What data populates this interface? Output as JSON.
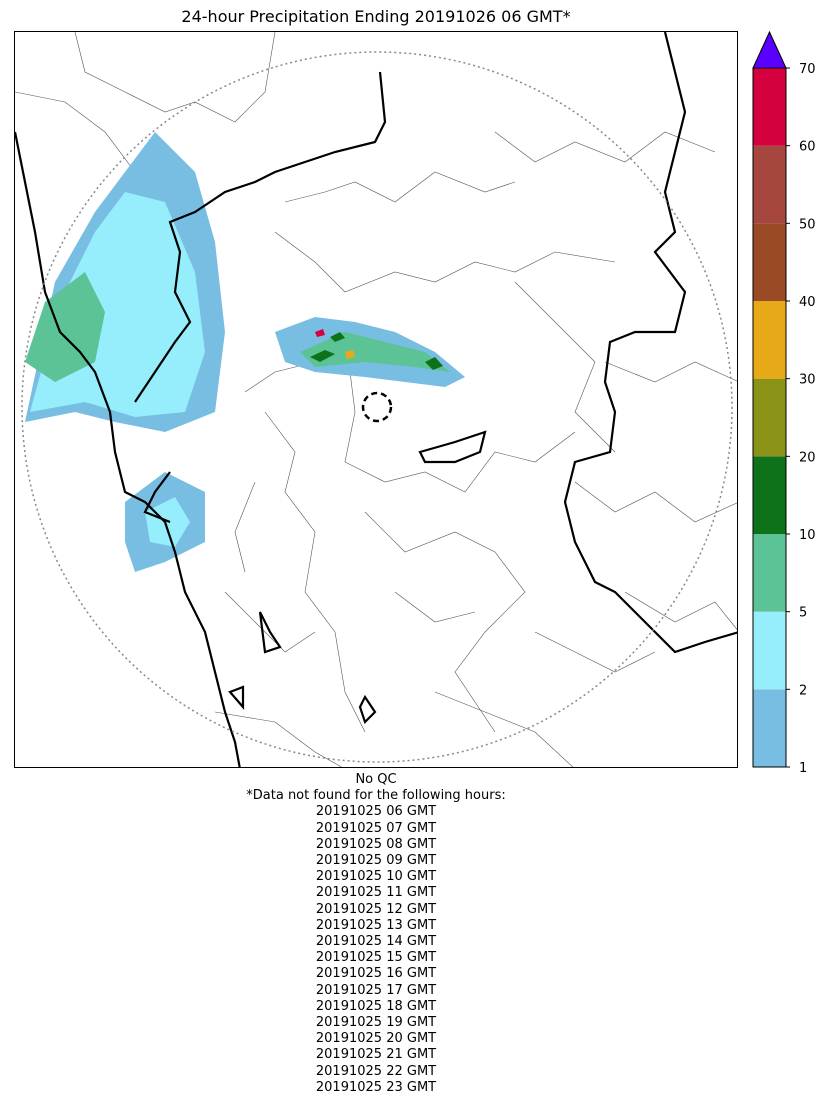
{
  "title": "24-hour Precipitation Ending 20191026 06 GMT*",
  "colorbar": {
    "levels": [
      1,
      2,
      5,
      10,
      20,
      30,
      40,
      50,
      60,
      70
    ],
    "tick_labels": [
      "1",
      "2",
      "5",
      "10",
      "20",
      "30",
      "40",
      "50",
      "60",
      "70"
    ],
    "colors": [
      "#78bde2",
      "#96edfb",
      "#5bc396",
      "#0d7219",
      "#8b9316",
      "#e8a918",
      "#9b4a26",
      "#a5473f",
      "#d5003e"
    ],
    "over_color": "#5a00ff"
  },
  "footer": {
    "qc_label": "No QC",
    "missing_note": "*Data not found for the following hours:",
    "missing_hours": [
      "20191025 06 GMT",
      "20191025 07 GMT",
      "20191025 08 GMT",
      "20191025 09 GMT",
      "20191025 10 GMT",
      "20191025 11 GMT",
      "20191025 12 GMT",
      "20191025 13 GMT",
      "20191025 14 GMT",
      "20191025 15 GMT",
      "20191025 16 GMT",
      "20191025 17 GMT",
      "20191025 18 GMT",
      "20191025 19 GMT",
      "20191025 20 GMT",
      "20191025 21 GMT",
      "20191025 22 GMT",
      "20191025 23 GMT"
    ]
  }
}
